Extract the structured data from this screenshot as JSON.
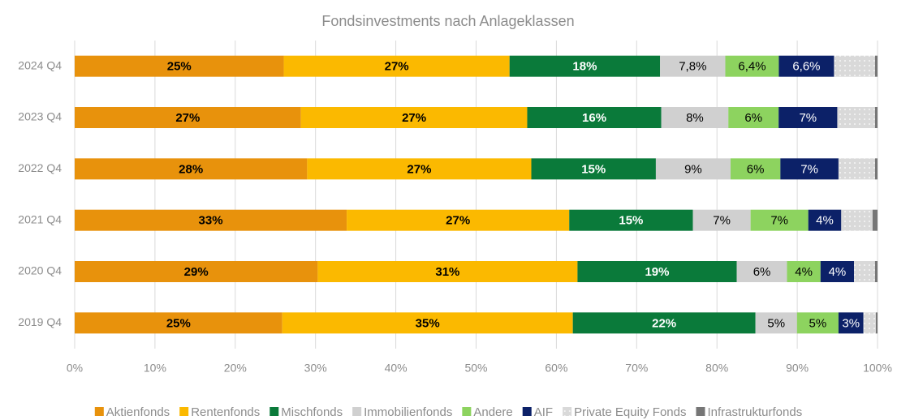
{
  "chart_data": {
    "type": "bar",
    "orientation": "horizontal",
    "stacked": "percent",
    "title": "Fondsinvestments nach Anlageklassen",
    "categories": [
      "2024 Q4",
      "2023 Q4",
      "2022 Q4",
      "2021 Q4",
      "2020 Q4",
      "2019 Q4"
    ],
    "series": [
      {
        "name": "Aktienfonds",
        "color": "#e8920c",
        "label_color": "#000000",
        "bold": true,
        "values": [
          25,
          27,
          28,
          33,
          29,
          25
        ],
        "value_labels": [
          "25%",
          "27%",
          "28%",
          "33%",
          "29%",
          "25%"
        ]
      },
      {
        "name": "Rentenfonds",
        "color": "#fbb900",
        "label_color": "#000000",
        "bold": true,
        "values": [
          27,
          27,
          27,
          27,
          31,
          35
        ],
        "value_labels": [
          "27%",
          "27%",
          "27%",
          "27%",
          "31%",
          "35%"
        ]
      },
      {
        "name": "Mischfonds",
        "color": "#0a7a3a",
        "label_color": "#ffffff",
        "bold": true,
        "values": [
          18,
          16,
          15,
          15,
          19,
          22
        ],
        "value_labels": [
          "18%",
          "16%",
          "15%",
          "15%",
          "19%",
          "22%"
        ]
      },
      {
        "name": "Immobilienfonds",
        "color": "#d0d0d0",
        "label_color": "#000000",
        "bold": false,
        "values": [
          7.8,
          8,
          9,
          7,
          6,
          5
        ],
        "value_labels": [
          "7,8%",
          "8%",
          "9%",
          "7%",
          "6%",
          "5%"
        ]
      },
      {
        "name": "Andere",
        "color": "#8dd35f",
        "label_color": "#000000",
        "bold": false,
        "values": [
          6.4,
          6,
          6,
          7,
          4,
          5
        ],
        "value_labels": [
          "6,4%",
          "6%",
          "6%",
          "7%",
          "4%",
          "5%"
        ]
      },
      {
        "name": "AIF",
        "color": "#0c2168",
        "label_color": "#ffffff",
        "bold": false,
        "values": [
          6.6,
          7,
          7,
          4,
          4,
          3
        ],
        "value_labels": [
          "6,6%",
          "7%",
          "7%",
          "4%",
          "4%",
          "3%"
        ]
      },
      {
        "name": "Private Equity Fonds",
        "color": "#d9d9d9",
        "pattern": "dots",
        "values": [
          4.9,
          4.5,
          4.4,
          3.8,
          2.5,
          1.5
        ]
      },
      {
        "name": "Infrastrukturfonds",
        "color": "#767676",
        "values": [
          0.3,
          0.3,
          0.3,
          0.6,
          0.3,
          0.2
        ]
      }
    ],
    "xlim": [
      0,
      100
    ],
    "xticks": [
      {
        "value": 0,
        "label": "0%"
      },
      {
        "value": 10,
        "label": "10%"
      },
      {
        "value": 20,
        "label": "20%"
      },
      {
        "value": 30,
        "label": "30%"
      },
      {
        "value": 40,
        "label": "40%"
      },
      {
        "value": 50,
        "label": "50%"
      },
      {
        "value": 60,
        "label": "60%"
      },
      {
        "value": 70,
        "label": "70%"
      },
      {
        "value": 80,
        "label": "80%"
      },
      {
        "value": 90,
        "label": "90%"
      },
      {
        "value": 100,
        "label": "100%"
      }
    ],
    "grid": true,
    "legend": "bottom"
  }
}
